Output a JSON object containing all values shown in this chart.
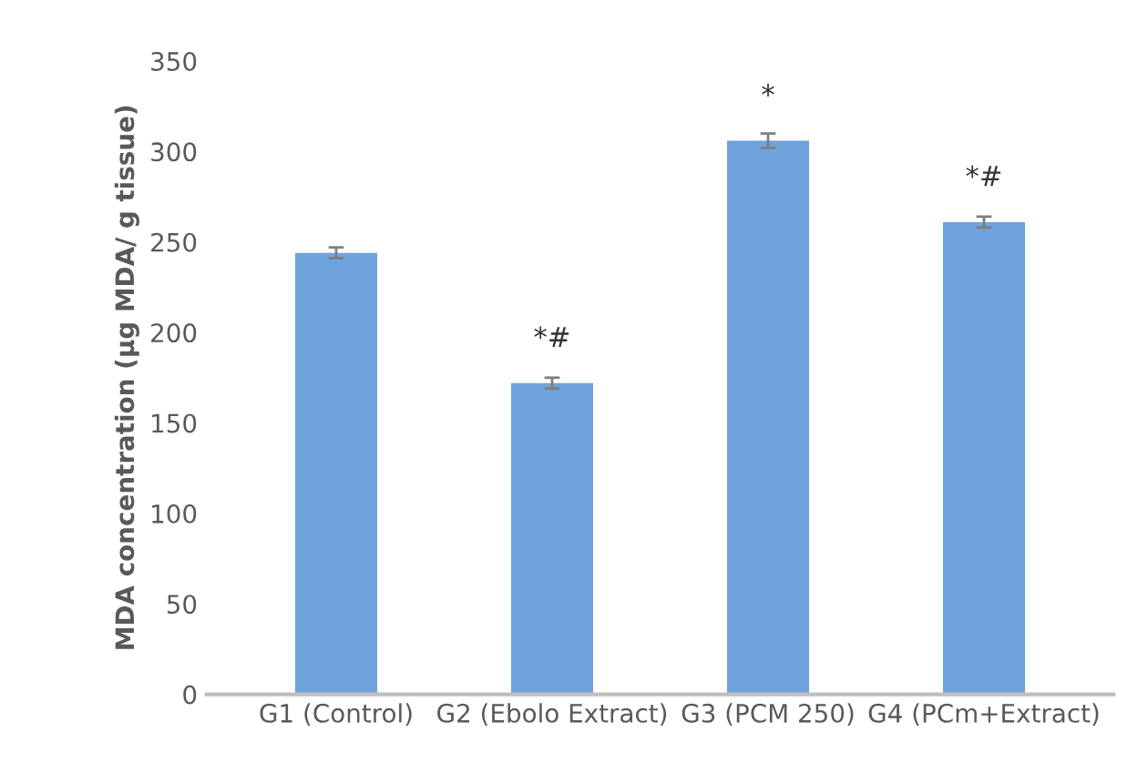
{
  "chart_data": {
    "type": "bar",
    "ylabel": "MDA concentration (µg MDA/ g tissue)",
    "categories": [
      "G1 (Control)",
      "G2 (Ebolo Extract)",
      "G3 (PCM 250)",
      "G4 (PCm+Extract)"
    ],
    "values": [
      244,
      172,
      306,
      261
    ],
    "errors": [
      3,
      3,
      4,
      3
    ],
    "color": "#6fa3dc",
    "ylim": [
      0,
      350
    ],
    "yticks": [
      0,
      50,
      100,
      150,
      200,
      250,
      300,
      350
    ],
    "grid": false,
    "annotations": [
      {
        "text": "*#",
        "x": "G2 (Ebolo Extract)",
        "y": 172
      },
      {
        "text": "*",
        "x": "G3 (PCM 250)",
        "y": 306
      },
      {
        "text": "*#",
        "x": "G4 (PCm+Extract)",
        "y": 261
      }
    ]
  }
}
